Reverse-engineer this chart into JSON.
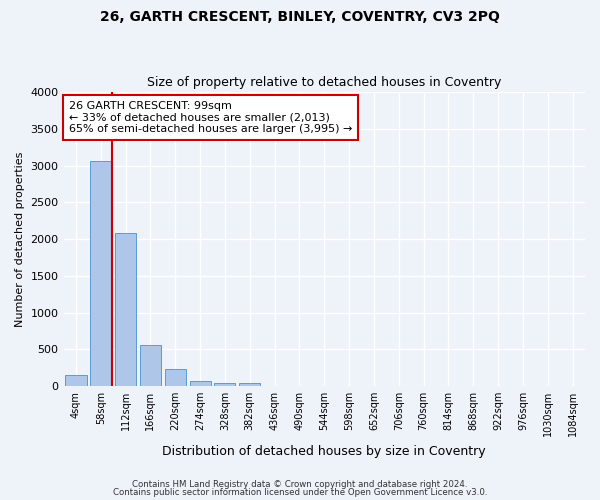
{
  "title1": "26, GARTH CRESCENT, BINLEY, COVENTRY, CV3 2PQ",
  "title2": "Size of property relative to detached houses in Coventry",
  "xlabel": "Distribution of detached houses by size in Coventry",
  "ylabel": "Number of detached properties",
  "bin_labels": [
    "4sqm",
    "58sqm",
    "112sqm",
    "166sqm",
    "220sqm",
    "274sqm",
    "328sqm",
    "382sqm",
    "436sqm",
    "490sqm",
    "544sqm",
    "598sqm",
    "652sqm",
    "706sqm",
    "760sqm",
    "814sqm",
    "868sqm",
    "922sqm",
    "976sqm",
    "1030sqm",
    "1084sqm"
  ],
  "bar_values": [
    150,
    3060,
    2080,
    555,
    235,
    75,
    48,
    42,
    0,
    0,
    0,
    0,
    0,
    0,
    0,
    0,
    0,
    0,
    0,
    0,
    0
  ],
  "bar_color": "#aec6e8",
  "bar_edge_color": "#5b9bd5",
  "vline_color": "#cc0000",
  "vline_x": 1.45,
  "annotation_text": "26 GARTH CRESCENT: 99sqm\n← 33% of detached houses are smaller (2,013)\n65% of semi-detached houses are larger (3,995) →",
  "annotation_box_color": "#ffffff",
  "annotation_box_edge": "#cc0000",
  "ylim": [
    0,
    4000
  ],
  "yticks": [
    0,
    500,
    1000,
    1500,
    2000,
    2500,
    3000,
    3500,
    4000
  ],
  "footer1": "Contains HM Land Registry data © Crown copyright and database right 2024.",
  "footer2": "Contains public sector information licensed under the Open Government Licence v3.0.",
  "bg_color": "#eef2f9",
  "grid_color": "#ffffff"
}
